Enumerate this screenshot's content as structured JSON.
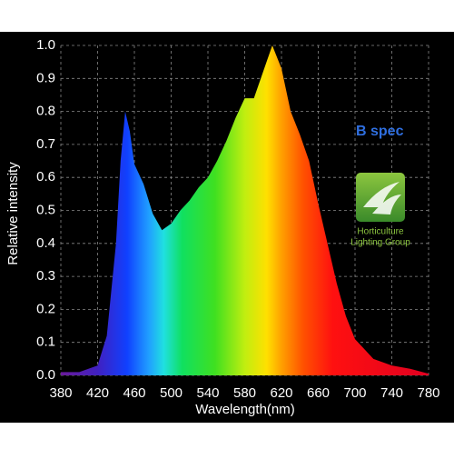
{
  "chart_data": {
    "type": "area",
    "xlabel": "Wavelength(nm)",
    "ylabel": "Relative intensity",
    "annotation": "B spec",
    "logo": [
      "Horticulture",
      "Lighting Group"
    ],
    "x": [
      380,
      400,
      420,
      430,
      440,
      445,
      450,
      455,
      460,
      470,
      480,
      490,
      500,
      510,
      520,
      530,
      540,
      550,
      560,
      570,
      580,
      590,
      600,
      610,
      620,
      630,
      640,
      650,
      660,
      670,
      680,
      690,
      700,
      720,
      740,
      760,
      780
    ],
    "values": [
      0.01,
      0.01,
      0.03,
      0.12,
      0.4,
      0.65,
      0.8,
      0.74,
      0.64,
      0.58,
      0.49,
      0.44,
      0.46,
      0.5,
      0.53,
      0.57,
      0.6,
      0.65,
      0.71,
      0.78,
      0.84,
      0.84,
      0.92,
      1.0,
      0.93,
      0.8,
      0.73,
      0.65,
      0.52,
      0.4,
      0.28,
      0.18,
      0.11,
      0.05,
      0.03,
      0.02,
      0.005
    ],
    "xlim": [
      380,
      780
    ],
    "xticks": [
      380,
      420,
      460,
      500,
      540,
      580,
      620,
      660,
      700,
      740,
      780
    ],
    "ylim": [
      0,
      1
    ],
    "yticks": [
      {
        "value": 0,
        "label": "0.0"
      },
      {
        "value": 0.1,
        "label": "0.1"
      },
      {
        "value": 0.2,
        "label": "0.2"
      },
      {
        "value": 0.3,
        "label": "0.3"
      },
      {
        "value": 0.4,
        "label": "0.4"
      },
      {
        "value": 0.5,
        "label": "0.5"
      },
      {
        "value": 0.6,
        "label": "0.6"
      },
      {
        "value": 0.7,
        "label": "0.7"
      },
      {
        "value": 0.8,
        "label": "0.8"
      },
      {
        "value": 0.9,
        "label": "0.9"
      },
      {
        "value": 1,
        "label": "1.0"
      }
    ],
    "grid": true
  }
}
